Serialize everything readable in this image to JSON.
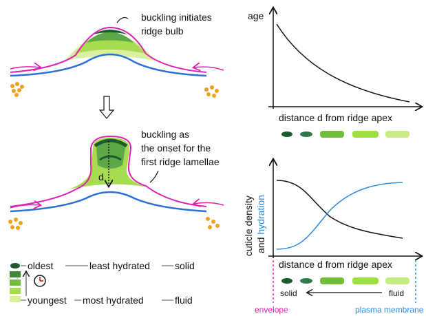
{
  "left": {
    "top_annotation": [
      "buckling initiates",
      "ridge bulb"
    ],
    "bottom_annotation": [
      "buckling as",
      "the onset for the",
      "first ridge lamellae"
    ],
    "distance_label": "d"
  },
  "legend": {
    "rows": [
      [
        "oldest",
        "least hydrated",
        "solid"
      ],
      [
        "youngest",
        "most hydrated",
        "fluid"
      ]
    ]
  },
  "age_plot": {
    "y_label": "age",
    "x_label": "distance d from ridge apex"
  },
  "density_plot": {
    "y_label_lines": [
      "cuticle density",
      "and"
    ],
    "y_label_highlight": "hydration",
    "x_label": "distance d from ridge apex",
    "arrow_start": "solid",
    "arrow_end": "fluid",
    "left_boundary": "envelope",
    "right_boundary": "plasma membrane"
  }
}
